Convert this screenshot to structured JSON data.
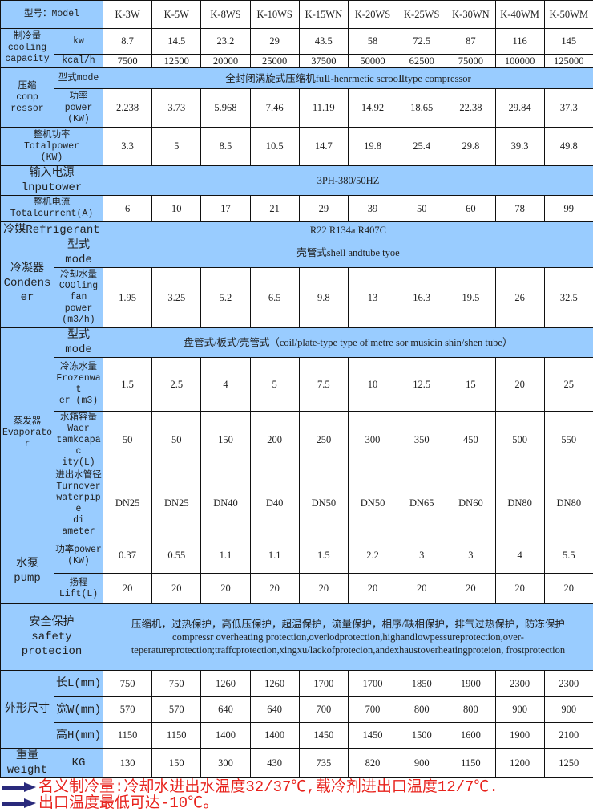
{
  "colors": {
    "label_bg": "#99ccff",
    "note_text": "#e8231d",
    "arrow": "#2a2a7c"
  },
  "header": {
    "label": "型号：Model",
    "models": [
      "K-3W",
      "K-5W",
      "K-8WS",
      "K-10WS",
      "K-15WN",
      "K-20WS",
      "K-25WS",
      "K-30WN",
      "K-40WM",
      "K-50WM"
    ]
  },
  "cooling": {
    "label": "制冷量\ncooling\ncapacity",
    "kw": {
      "unit": "kw",
      "values": [
        "8.7",
        "14.5",
        "23.2",
        "29",
        "43.5",
        "58",
        "72.5",
        "87",
        "116",
        "145"
      ]
    },
    "kcal": {
      "unit": "kcal/h",
      "values": [
        "7500",
        "12500",
        "20000",
        "25000",
        "37500",
        "50000",
        "62500",
        "75000",
        "100000",
        "125000"
      ]
    }
  },
  "compressor": {
    "label": "压缩\ncomp\nressor",
    "mode": {
      "unit": "型式mode",
      "value": "全封闭涡旋式压缩机fuⅡ-henrmetic scrooⅡtype compressor"
    },
    "power": {
      "unit": "功率\npower\n(KW)",
      "values": [
        "2.238",
        "3.73",
        "5.968",
        "7.46",
        "11.19",
        "14.92",
        "18.65",
        "22.38",
        "29.84",
        "37.3"
      ]
    }
  },
  "total_power": {
    "label": "整机功率\nTotalpower\n(KW)",
    "values": [
      "3.3",
      "5",
      "8.5",
      "10.5",
      "14.7",
      "19.8",
      "25.4",
      "29.8",
      "39.3",
      "49.8"
    ]
  },
  "input_power": {
    "label": "输入电源lnputower",
    "value": "3PH-380/50HZ"
  },
  "total_current": {
    "label": "整机电流\nTotalcurrent(A)",
    "values": [
      "6",
      "10",
      "17",
      "21",
      "29",
      "39",
      "50",
      "60",
      "78",
      "99"
    ]
  },
  "refrigerant": {
    "label": "冷媒Refrigerant",
    "value": "R22 R134a R407C"
  },
  "condenser": {
    "label": "冷凝器\nCondenser",
    "mode": {
      "unit": "型式mode",
      "value": "壳管式shell andtube tyoe"
    },
    "cooling_water": {
      "unit": "冷却水量\nCOOling\nfan power\n(m3/h)",
      "values": [
        "1.95",
        "3.25",
        "5.2",
        "6.5",
        "9.8",
        "13",
        "16.3",
        "19.5",
        "26",
        "32.5"
      ]
    }
  },
  "evaporator": {
    "label": "蒸发器\nEvaporator",
    "mode": {
      "unit": "型式mode",
      "value": "盘管式/板式/壳管式（coil/plate-type type of metre sor musicin shin/shen tube）"
    },
    "frozen_water": {
      "unit": "冷冻水量\nFrozenwat\ner (m3)",
      "values": [
        "1.5",
        "2.5",
        "4",
        "5",
        "7.5",
        "10",
        "12.5",
        "15",
        "20",
        "25"
      ]
    },
    "tank": {
      "unit": "水箱容量\nWaer\ntamkcapac\nity(L)",
      "values": [
        "50",
        "50",
        "150",
        "200",
        "250",
        "300",
        "350",
        "450",
        "500",
        "550"
      ]
    },
    "pipe": {
      "unit": "进出水管径\nTurnover\nwaterpipe\ndi ameter",
      "values": [
        "DN25",
        "DN25",
        "DN40",
        "D40",
        "DN50",
        "DN50",
        "DN65",
        "DN60",
        "DN80",
        "DN80"
      ]
    }
  },
  "pump": {
    "label": "水泵\npump",
    "power": {
      "unit": "功率power\n(KW)",
      "values": [
        "0.37",
        "0.55",
        "1.1",
        "1.1",
        "1.5",
        "2.2",
        "3",
        "3",
        "4",
        "5.5"
      ]
    },
    "lift": {
      "unit": "扬程\nLift(L)",
      "values": [
        "20",
        "20",
        "20",
        "20",
        "20",
        "20",
        "20",
        "20",
        "20",
        "20"
      ]
    }
  },
  "safety": {
    "label": "安全保护\nsafety protecion",
    "value": "压缩机，过热保护，高低压保护，超温保护，流量保护，相序/缺相保护，排气过热保护，防冻保护\ncompressr overheating protection,overlodprotection,highandlowpessureprotection,over-teperatureprotection;traffcprotection,xingxu/lackofprotecion,andexhaustoverheatingproteion,      frostprotection"
  },
  "dimensions": {
    "label": "外形尺寸",
    "length": {
      "unit": "长L(mm)",
      "values": [
        "750",
        "750",
        "1260",
        "1260",
        "1700",
        "1700",
        "1850",
        "1900",
        "2300",
        "2300"
      ]
    },
    "width": {
      "unit": "宽W(mm)",
      "values": [
        "570",
        "570",
        "640",
        "640",
        "700",
        "700",
        "800",
        "800",
        "900",
        "900"
      ]
    },
    "height": {
      "unit": "高H(mm)",
      "values": [
        "1150",
        "1150",
        "1400",
        "1400",
        "1450",
        "1450",
        "1500",
        "1600",
        "1900",
        "2100"
      ]
    }
  },
  "weight": {
    "label": "重量\nweight",
    "unit": "KG",
    "values": [
      "130",
      "150",
      "300",
      "430",
      "735",
      "820",
      "900",
      "1150",
      "1200",
      "1250"
    ]
  },
  "notes": [
    "名义制冷量:冷却水进出水温度32/37℃,载冷剂进出口温度12/7℃.",
    "出口温度最低可达-10℃。"
  ]
}
